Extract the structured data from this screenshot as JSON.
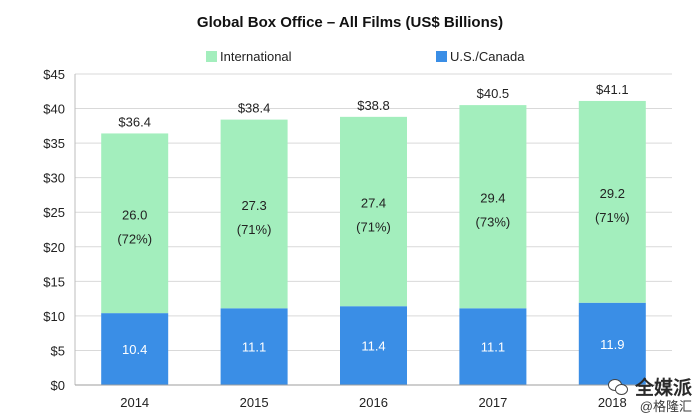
{
  "chart_data": {
    "type": "bar",
    "stacked": true,
    "title": "Global Box Office – All Films (US$ Billions)",
    "categories": [
      "2014",
      "2015",
      "2016",
      "2017",
      "2018"
    ],
    "series": [
      {
        "name": "U.S./Canada",
        "values": [
          10.4,
          11.1,
          11.4,
          11.1,
          11.9
        ],
        "color": "#3a8ee6"
      },
      {
        "name": "International",
        "values": [
          26.0,
          27.3,
          27.4,
          29.4,
          29.2
        ],
        "color": "#a3eebd"
      }
    ],
    "international_labels": [
      "26.0",
      "27.3",
      "27.4",
      "29.4",
      "29.2"
    ],
    "international_pct_labels": [
      "(72%)",
      "(71%)",
      "(71%)",
      "(73%)",
      "(71%)"
    ],
    "domestic_labels": [
      "10.4",
      "11.1",
      "11.4",
      "11.1",
      "11.9"
    ],
    "total_labels": [
      "$36.4",
      "$38.4",
      "$38.8",
      "$40.5",
      "$41.1"
    ],
    "totals": [
      36.4,
      38.4,
      38.8,
      40.5,
      41.1
    ],
    "ylim": [
      0,
      45
    ],
    "yticks": [
      0,
      5,
      10,
      15,
      20,
      25,
      30,
      35,
      40,
      45
    ],
    "ytick_labels": [
      "$0",
      "$5",
      "$10",
      "$15",
      "$20",
      "$25",
      "$30",
      "$35",
      "$40",
      "$45"
    ],
    "xlabel": "",
    "ylabel": "",
    "legend_position": "top",
    "legend_order": [
      "International",
      "U.S./Canada"
    ],
    "grid": true
  },
  "watermark": {
    "line1": "全媒派",
    "line2": "@格隆汇"
  }
}
